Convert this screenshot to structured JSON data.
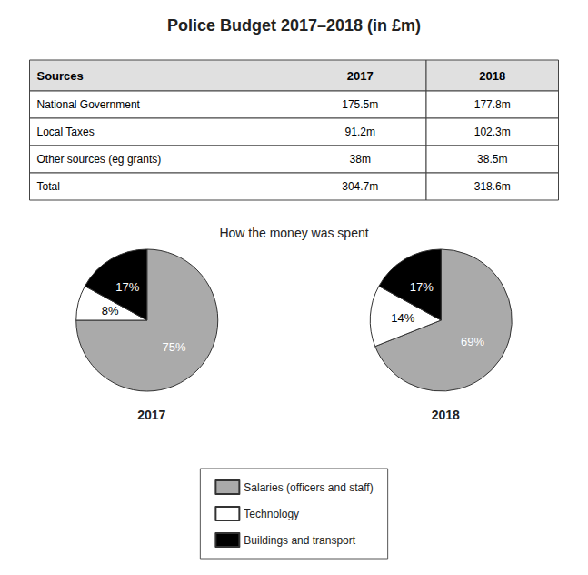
{
  "chart_data": [
    {
      "type": "table",
      "title": "Police Budget 2017–2018 (in £m)",
      "headers": [
        "Sources",
        "2017",
        "2018"
      ],
      "rows": [
        [
          "National Government",
          "175.5m",
          "177.8m"
        ],
        [
          "Local Taxes",
          "91.2m",
          "102.3m"
        ],
        [
          "Other sources (eg grants)",
          "38m",
          "38.5m"
        ],
        [
          "Total",
          "304.7m",
          "318.6m"
        ]
      ]
    },
    {
      "type": "pie",
      "title": "2017",
      "subtitle": "How the money was spent",
      "categories": [
        "Salaries (officers and staff)",
        "Technology",
        "Buildings and transport"
      ],
      "values": [
        75,
        8,
        17
      ],
      "value_labels": [
        "75%",
        "8%",
        "17%"
      ],
      "colors": [
        "#aaaaaa",
        "#ffffff",
        "#000000"
      ],
      "data_labels": true,
      "legend": "bottom"
    },
    {
      "type": "pie",
      "title": "2018",
      "categories": [
        "Salaries (officers and staff)",
        "Technology",
        "Buildings and transport"
      ],
      "values": [
        69,
        14,
        17
      ],
      "value_labels": [
        "69%",
        "14%",
        "17%"
      ],
      "colors": [
        "#aaaaaa",
        "#ffffff",
        "#000000"
      ],
      "data_labels": true
    }
  ]
}
